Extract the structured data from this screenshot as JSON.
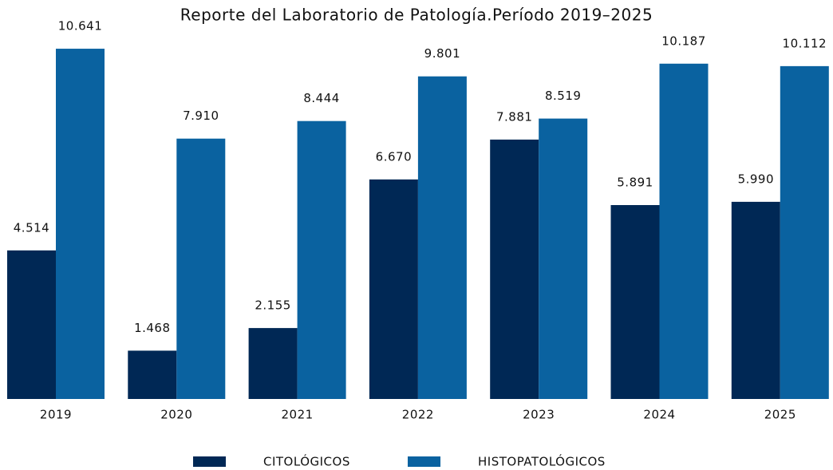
{
  "chart_data": {
    "type": "bar",
    "title": "Reporte del Laboratorio de Patología.Período 2019–2025",
    "categories": [
      "2019",
      "2020",
      "2021",
      "2022",
      "2023",
      "2024",
      "2025"
    ],
    "series": [
      {
        "name": "CITOLÓGICOS",
        "color": "#002855",
        "values": [
          4514,
          1468,
          2155,
          6670,
          7881,
          5891,
          5990
        ],
        "value_labels": [
          "4.514",
          "1.468",
          "2.155",
          "6.670",
          "7.881",
          "5.891",
          "5.990"
        ]
      },
      {
        "name": "HISTOPATOLÓGICOS",
        "color": "#0a62a0",
        "values": [
          10641,
          7910,
          8444,
          9801,
          8519,
          10187,
          10112
        ],
        "value_labels": [
          "10.641",
          "7.910",
          "8.444",
          "9.801",
          "8.519",
          "10.187",
          "10.112"
        ]
      }
    ],
    "ylim": [
      0,
      12000
    ],
    "legend": "bottom"
  }
}
